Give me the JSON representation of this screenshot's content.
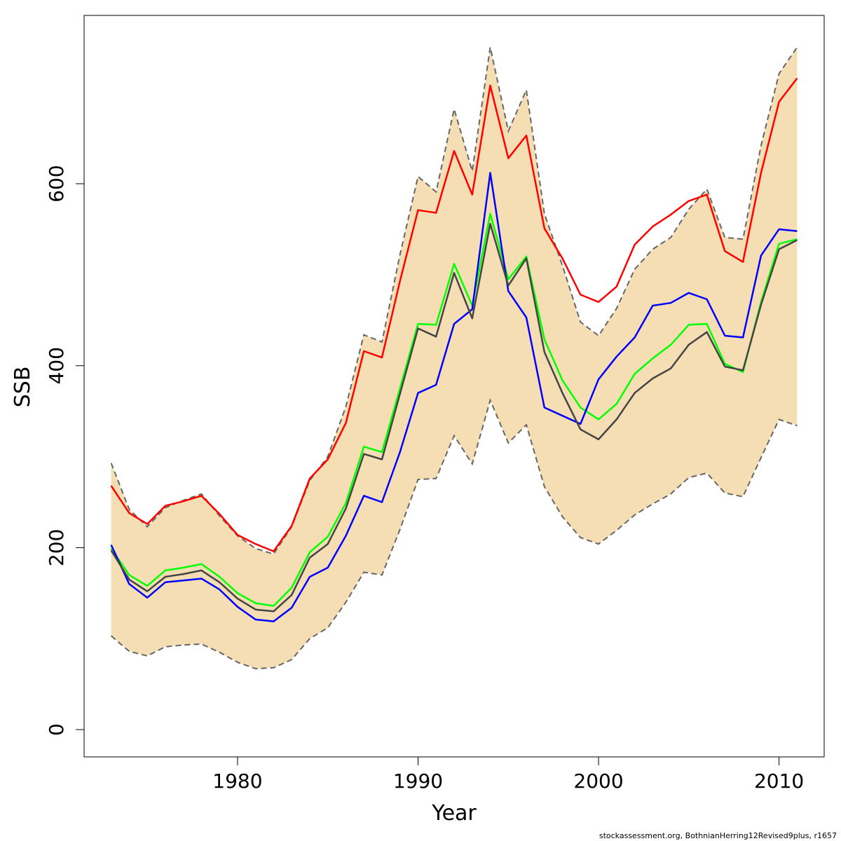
{
  "chart_data": {
    "type": "line",
    "xlabel": "Year",
    "ylabel": "SSB",
    "xlim": [
      1971.5,
      2012.5
    ],
    "ylim": [
      -30,
      785
    ],
    "x_ticks": [
      1980,
      1990,
      2000,
      2010
    ],
    "y_ticks": [
      0,
      200,
      400,
      600
    ],
    "grid": false,
    "x": [
      1973,
      1974,
      1975,
      1976,
      1977,
      1978,
      1979,
      1980,
      1981,
      1982,
      1983,
      1984,
      1985,
      1986,
      1987,
      1988,
      1989,
      1990,
      1991,
      1992,
      1993,
      1994,
      1995,
      1996,
      1997,
      1998,
      1999,
      2000,
      2001,
      2002,
      2003,
      2004,
      2005,
      2006,
      2007,
      2008,
      2009,
      2010,
      2011
    ],
    "band": {
      "fill": "#F5DEB3",
      "edge_color": "#666666",
      "upper": [
        293,
        242,
        223,
        244,
        252,
        259,
        235,
        213,
        199,
        193,
        223,
        274,
        300,
        355,
        434,
        426,
        522,
        608,
        591,
        682,
        614,
        750,
        658,
        703,
        567,
        510,
        448,
        433,
        463,
        506,
        528,
        541,
        572,
        594,
        541,
        539,
        642,
        721,
        750
      ],
      "lower": [
        103,
        86,
        81,
        91,
        93,
        94,
        85,
        74,
        67,
        68,
        77,
        100,
        112,
        140,
        173,
        170,
        220,
        275,
        276,
        323,
        292,
        362,
        315,
        335,
        267,
        234,
        211,
        204,
        219,
        236,
        248,
        259,
        277,
        282,
        260,
        256,
        299,
        341,
        334
      ]
    },
    "series": [
      {
        "color": "#FF0000",
        "values": [
          268,
          238,
          226,
          246,
          251,
          257,
          237,
          214,
          204,
          196,
          224,
          276,
          297,
          337,
          416,
          409,
          493,
          571,
          568,
          636,
          588,
          708,
          628,
          653,
          551,
          518,
          478,
          470,
          487,
          533,
          553,
          566,
          581,
          588,
          526,
          514,
          612,
          690,
          716
        ]
      },
      {
        "color": "#00FF00",
        "values": [
          199,
          170,
          158,
          175,
          178,
          182,
          168,
          150,
          139,
          136,
          156,
          195,
          212,
          249,
          311,
          305,
          375,
          446,
          445,
          512,
          466,
          567,
          495,
          520,
          429,
          384,
          354,
          341,
          358,
          391,
          408,
          423,
          445,
          446,
          402,
          393,
          470,
          534,
          539
        ]
      },
      {
        "color": "#0000FF",
        "values": [
          203,
          160,
          145,
          162,
          164,
          166,
          154,
          135,
          121,
          119,
          134,
          168,
          178,
          213,
          257,
          250,
          305,
          370,
          379,
          446,
          462,
          612,
          482,
          453,
          354,
          345,
          336,
          385,
          410,
          431,
          466,
          469,
          480,
          473,
          433,
          431,
          521,
          550,
          548
        ]
      },
      {
        "color": "#444444",
        "values": [
          197,
          165,
          152,
          168,
          171,
          175,
          162,
          144,
          132,
          130,
          148,
          189,
          204,
          243,
          303,
          297,
          369,
          441,
          432,
          502,
          452,
          556,
          488,
          518,
          415,
          370,
          330,
          319,
          341,
          370,
          386,
          397,
          423,
          437,
          399,
          395,
          467,
          528,
          538
        ]
      }
    ]
  },
  "footer_text": "stockassessment.org, BothnianHerring12Revised9plus, r1657"
}
